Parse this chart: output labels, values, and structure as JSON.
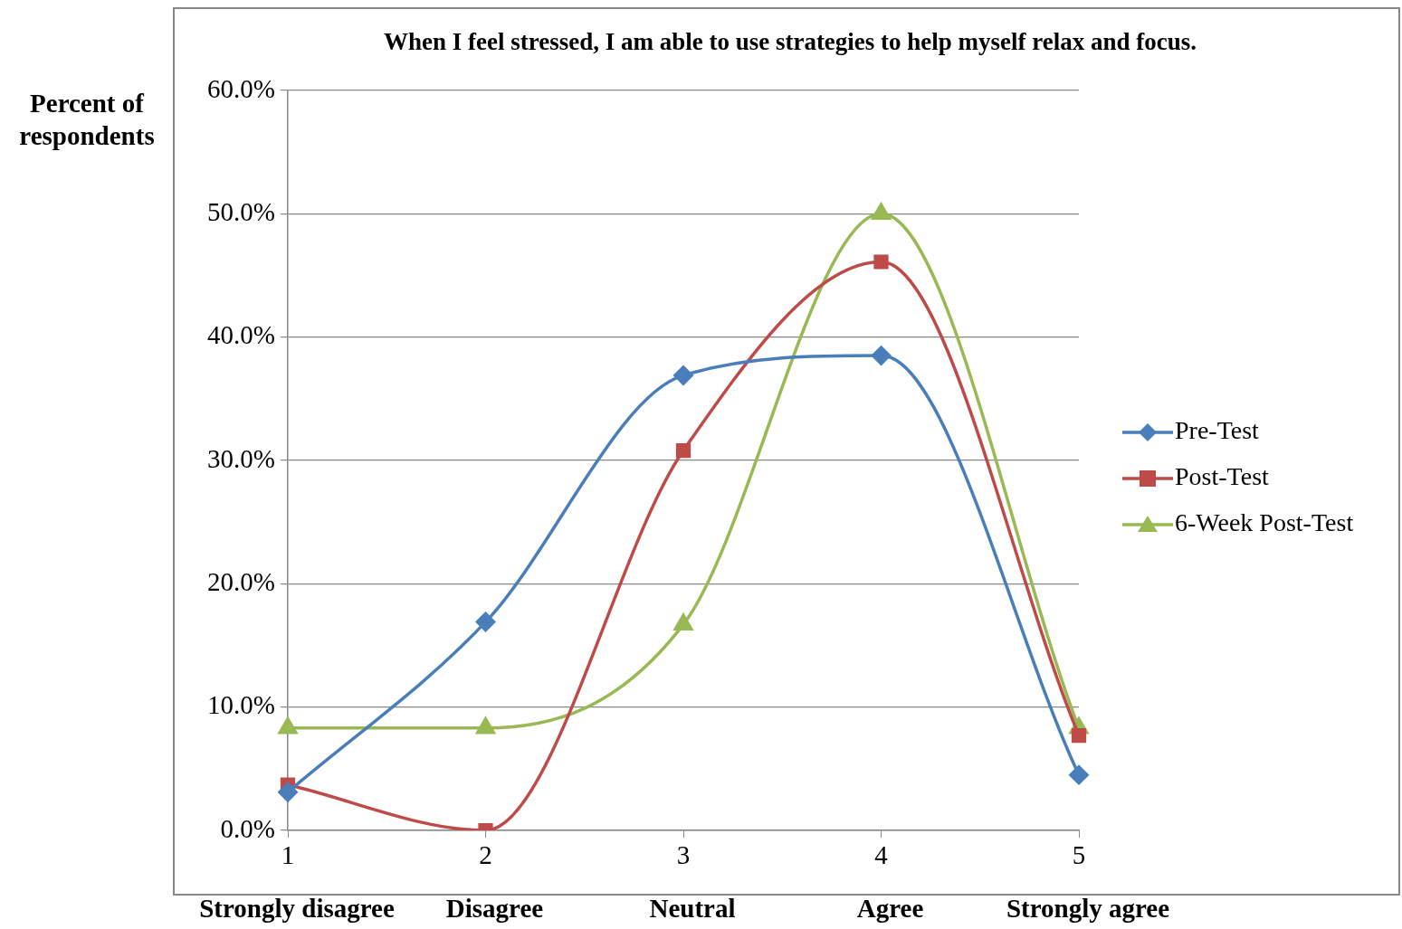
{
  "chart_data": {
    "type": "line",
    "title": "When I feel stressed, I am able to use strategies to help myself relax and focus.",
    "ylabel": "Percent of respondents",
    "categories": [
      "1",
      "2",
      "3",
      "4",
      "5"
    ],
    "series": [
      {
        "name": "Pre-Test",
        "color": "#4a7ebb",
        "marker": "diamond",
        "values": [
          3.1,
          16.9,
          36.9,
          38.5,
          4.5
        ]
      },
      {
        "name": "Post-Test",
        "color": "#be4b48",
        "marker": "square",
        "values": [
          3.7,
          0,
          30.8,
          46.1,
          7.7
        ]
      },
      {
        "name": "6-Week Post-Test",
        "color": "#98b954",
        "marker": "triangle",
        "values": [
          8.3,
          8.3,
          16.7,
          50.0,
          8.3
        ]
      }
    ],
    "ylim": [
      0,
      60
    ],
    "yticks": [
      {
        "value": 0,
        "label": "0.0%"
      },
      {
        "value": 10,
        "label": "10.0%"
      },
      {
        "value": 20,
        "label": "20.0%"
      },
      {
        "value": 30,
        "label": "30.0%"
      },
      {
        "value": 40,
        "label": "40.0%"
      },
      {
        "value": 50,
        "label": "50.0%"
      },
      {
        "value": 60,
        "label": "60.0%"
      }
    ],
    "annotations": [
      "Strongly disagree",
      "Disagree",
      "Neutral",
      "Agree",
      "Strongly agree"
    ],
    "grid": "y",
    "legend": "right",
    "line_style": "solid"
  }
}
